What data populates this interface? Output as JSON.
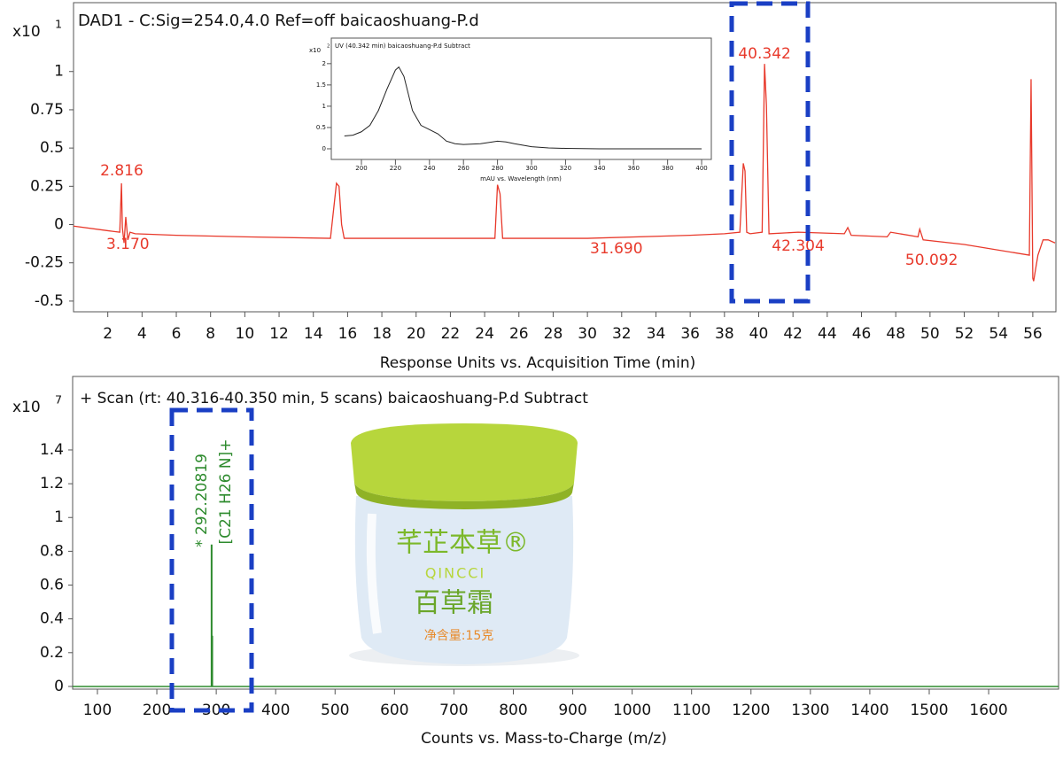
{
  "chart_data": [
    {
      "type": "line",
      "title": "DAD1 - C:Sig=254.0,4.0  Ref=off baicaoshuang-P.d",
      "y_multiplier": "x10",
      "y_exponent": "1",
      "x_label": "Response Units vs. Acquisition Time (min)",
      "color": "#e8392b",
      "x": [
        0,
        2,
        2.7,
        2.8,
        2.85,
        2.95,
        3.05,
        3.17,
        3.3,
        3.6,
        6,
        10,
        15,
        15.35,
        15.5,
        15.65,
        15.8,
        20,
        24.6,
        24.75,
        24.9,
        25.05,
        30,
        36,
        38,
        38.9,
        39.1,
        39.2,
        39.3,
        39.5,
        40.2,
        40.34,
        40.45,
        40.6,
        42.3,
        45,
        45.2,
        45.4,
        47.5,
        47.7,
        49.3,
        49.4,
        49.6,
        52,
        55.8,
        55.9,
        56.0,
        56.05,
        56.15,
        56.3,
        56.6,
        56.9,
        57.3
      ],
      "values": [
        -0.01,
        -0.04,
        -0.05,
        0.27,
        -0.02,
        -0.12,
        0.05,
        -0.1,
        -0.05,
        -0.06,
        -0.07,
        -0.08,
        -0.09,
        0.27,
        0.25,
        0.0,
        -0.09,
        -0.09,
        -0.09,
        0.26,
        0.2,
        -0.09,
        -0.09,
        -0.07,
        -0.06,
        -0.05,
        0.4,
        0.35,
        -0.05,
        -0.06,
        -0.05,
        1.05,
        0.78,
        -0.06,
        -0.05,
        -0.06,
        -0.02,
        -0.07,
        -0.08,
        -0.05,
        -0.08,
        -0.03,
        -0.1,
        -0.13,
        -0.2,
        0.95,
        -0.35,
        -0.37,
        -0.3,
        -0.2,
        -0.1,
        -0.1,
        -0.12
      ],
      "xlim": [
        0,
        57.35
      ],
      "xticks": [
        2,
        4,
        6,
        8,
        10,
        12,
        14,
        16,
        18,
        20,
        22,
        24,
        26,
        28,
        30,
        32,
        34,
        36,
        38,
        40,
        42,
        44,
        46,
        48,
        50,
        52,
        54,
        56
      ],
      "ylim": [
        -0.57,
        1.45
      ],
      "yticks": [
        -0.5,
        -0.25,
        0,
        0.25,
        0.5,
        0.75,
        1
      ],
      "peak_labels": [
        2.816,
        {
          "value": 3.17,
          "label": "3.170"
        },
        {
          "value": 31.69,
          "label": "31.690"
        },
        40.342,
        42.304,
        50.092
      ]
    },
    {
      "type": "line",
      "title": "UV (40.342 min) baicaoshuang-P.d  Subtract",
      "y_multiplier": "x10",
      "y_exponent": "2",
      "x_label": "mAU vs. Wavelength (nm)",
      "color": "#222222",
      "x": [
        190,
        195,
        200,
        205,
        210,
        215,
        220,
        222,
        225,
        230,
        235,
        240,
        245,
        250,
        255,
        260,
        270,
        280,
        285,
        290,
        300,
        310,
        320,
        340,
        360,
        380,
        400
      ],
      "values": [
        0.3,
        0.32,
        0.4,
        0.55,
        0.9,
        1.4,
        1.85,
        1.92,
        1.7,
        0.9,
        0.55,
        0.45,
        0.35,
        0.18,
        0.12,
        0.1,
        0.12,
        0.18,
        0.16,
        0.12,
        0.05,
        0.02,
        0.01,
        0,
        0,
        0,
        0
      ],
      "xlim": [
        182.3,
        405.7
      ],
      "xticks": [
        200,
        220,
        240,
        260,
        280,
        300,
        320,
        340,
        360,
        380,
        400
      ],
      "ylim": [
        -0.25,
        2.6
      ],
      "yticks": [
        0,
        0.5,
        1,
        1.5,
        2
      ]
    },
    {
      "type": "stem",
      "title": "+ Scan (rt: 40.316-40.350 min, 5 scans) baicaoshuang-P.d  Subtract",
      "y_multiplier": "x10",
      "y_exponent": "7",
      "x_label": "Counts vs. Mass-to-Charge (m/z)",
      "color": "#2e8b2e",
      "x": [
        292.2,
        293.2
      ],
      "values": [
        0.84,
        0.3
      ],
      "xlim": [
        58.3,
        1717.7
      ],
      "xticks": [
        100,
        200,
        300,
        400,
        500,
        600,
        700,
        800,
        900,
        1000,
        1100,
        1200,
        1300,
        1400,
        1500,
        1600
      ],
      "ylim": [
        -0.016,
        1.835
      ],
      "yticks": [
        0,
        0.2,
        0.4,
        0.6,
        0.8,
        1,
        1.2,
        1.4
      ],
      "annotations": [
        "* 292.20819",
        "[C21 H26 N]+"
      ]
    }
  ],
  "product": {
    "brand": "芊芷本草®",
    "brand_latin": "QINCCI",
    "name": "百草霜",
    "net_content": "净含量:15克"
  }
}
